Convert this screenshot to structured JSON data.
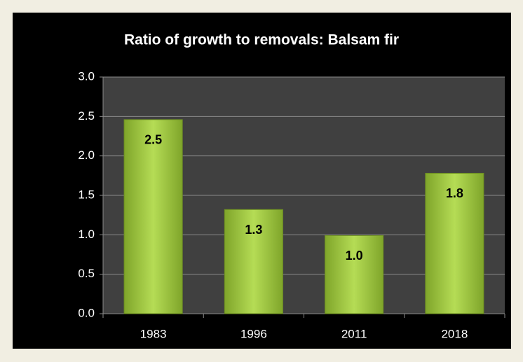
{
  "chart_data": {
    "type": "bar",
    "title": "Ratio of growth to removals:  Balsam fir",
    "categories": [
      "1983",
      "1996",
      "2011",
      "2018"
    ],
    "values": [
      2.46,
      1.32,
      0.99,
      1.78
    ],
    "value_labels": [
      "2.5",
      "1.3",
      "1.0",
      "1.8"
    ],
    "color": "#9bc93a",
    "ylim": [
      0,
      3
    ],
    "yticks": [
      {
        "value": 0,
        "label": "0.0"
      },
      0.5,
      {
        "value": 1,
        "label": "1.0"
      },
      1.5,
      {
        "value": 2,
        "label": "2.0"
      },
      2.5,
      {
        "value": 3,
        "label": "3.0"
      }
    ],
    "grid": true
  }
}
